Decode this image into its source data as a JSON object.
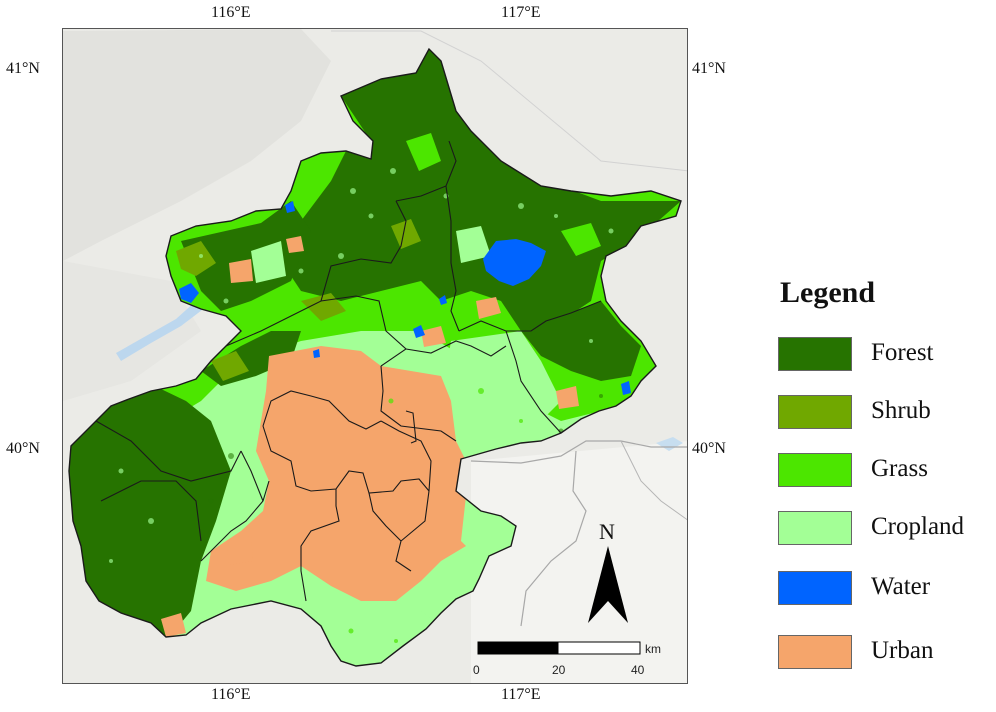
{
  "coordinates": {
    "top_left_lon": "116°E",
    "top_right_lon": "117°E",
    "bottom_left_lon": "116°E",
    "bottom_right_lon": "117°E",
    "left_top_lat": "41°N",
    "left_bottom_lat": "40°N",
    "right_top_lat": "41°N",
    "right_bottom_lat": "40°N"
  },
  "legend": {
    "title": "Legend",
    "items": [
      {
        "label": "Forest",
        "color": "#267300"
      },
      {
        "label": "Shrub",
        "color": "#70a800"
      },
      {
        "label": "Grass",
        "color": "#4ce600"
      },
      {
        "label": "Cropland",
        "color": "#a3ff96"
      },
      {
        "label": "Water",
        "color": "#0064ff"
      },
      {
        "label": "Urban",
        "color": "#f5a56b"
      }
    ]
  },
  "scale_bar": {
    "unit": "km",
    "ticks": [
      "0",
      "20",
      "40"
    ]
  },
  "north_arrow": {
    "letter": "N",
    "icon": "north-arrow-icon"
  }
}
